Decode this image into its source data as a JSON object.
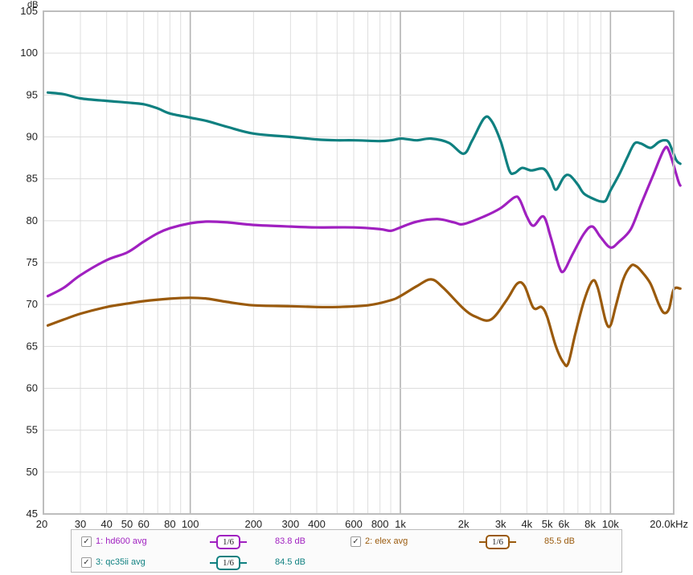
{
  "chart_data": {
    "type": "line",
    "title": "",
    "xlabel": "",
    "ylabel": "dB",
    "xscale": "log",
    "xlim": [
      20,
      20000
    ],
    "ylim": [
      45,
      105
    ],
    "grid": true,
    "y_ticks": [
      "45",
      "50",
      "55",
      "60",
      "65",
      "70",
      "75",
      "80",
      "85",
      "90",
      "95",
      "100",
      "105"
    ],
    "x_ticks": [
      {
        "v": 20,
        "label": "20"
      },
      {
        "v": 30,
        "label": "30"
      },
      {
        "v": 40,
        "label": "40"
      },
      {
        "v": 50,
        "label": "50"
      },
      {
        "v": 60,
        "label": "60"
      },
      {
        "v": 80,
        "label": "80"
      },
      {
        "v": 100,
        "label": "100"
      },
      {
        "v": 200,
        "label": "200"
      },
      {
        "v": 300,
        "label": "300"
      },
      {
        "v": 400,
        "label": "400"
      },
      {
        "v": 600,
        "label": "600"
      },
      {
        "v": 800,
        "label": "800"
      },
      {
        "v": 1000,
        "label": "1k"
      },
      {
        "v": 2000,
        "label": "2k"
      },
      {
        "v": 3000,
        "label": "3k"
      },
      {
        "v": 4000,
        "label": "4k"
      },
      {
        "v": 5000,
        "label": "5k"
      },
      {
        "v": 6000,
        "label": "6k"
      },
      {
        "v": 8000,
        "label": "8k"
      },
      {
        "v": 10000,
        "label": "10k"
      },
      {
        "v": 20000,
        "label": "20.0kHz"
      }
    ],
    "series": [
      {
        "name": "1: hd600 avg",
        "color": "#a020c0",
        "smoothing": "1/6",
        "level": "83.8 dB",
        "points": [
          [
            21,
            71
          ],
          [
            25,
            72
          ],
          [
            30,
            73.5
          ],
          [
            40,
            75.3
          ],
          [
            50,
            76.2
          ],
          [
            60,
            77.5
          ],
          [
            70,
            78.5
          ],
          [
            80,
            79.1
          ],
          [
            100,
            79.7
          ],
          [
            120,
            79.9
          ],
          [
            150,
            79.8
          ],
          [
            200,
            79.5
          ],
          [
            300,
            79.3
          ],
          [
            400,
            79.2
          ],
          [
            600,
            79.2
          ],
          [
            800,
            79
          ],
          [
            900,
            78.8
          ],
          [
            1000,
            79.2
          ],
          [
            1200,
            79.9
          ],
          [
            1500,
            80.2
          ],
          [
            1800,
            79.8
          ],
          [
            2000,
            79.6
          ],
          [
            2500,
            80.5
          ],
          [
            3000,
            81.5
          ],
          [
            3500,
            82.8
          ],
          [
            3700,
            82.5
          ],
          [
            4000,
            80.5
          ],
          [
            4300,
            79.4
          ],
          [
            4800,
            80.5
          ],
          [
            5200,
            78
          ],
          [
            5700,
            74.5
          ],
          [
            6000,
            74
          ],
          [
            6600,
            76
          ],
          [
            7500,
            78.5
          ],
          [
            8200,
            79.3
          ],
          [
            9000,
            78
          ],
          [
            10000,
            76.8
          ],
          [
            11000,
            77.5
          ],
          [
            12500,
            79
          ],
          [
            14000,
            82
          ],
          [
            16000,
            85.5
          ],
          [
            18000,
            88.5
          ],
          [
            19000,
            88.3
          ],
          [
            21000,
            84.8
          ],
          [
            21500,
            84.2
          ]
        ]
      },
      {
        "name": "2: elex avg",
        "color": "#9a5a0c",
        "smoothing": "1/6",
        "level": "85.5 dB",
        "points": [
          [
            21,
            67.5
          ],
          [
            25,
            68.2
          ],
          [
            30,
            68.9
          ],
          [
            40,
            69.7
          ],
          [
            50,
            70.1
          ],
          [
            60,
            70.4
          ],
          [
            80,
            70.7
          ],
          [
            100,
            70.8
          ],
          [
            120,
            70.7
          ],
          [
            150,
            70.3
          ],
          [
            200,
            69.9
          ],
          [
            300,
            69.8
          ],
          [
            400,
            69.7
          ],
          [
            500,
            69.7
          ],
          [
            700,
            69.9
          ],
          [
            900,
            70.5
          ],
          [
            1000,
            71
          ],
          [
            1200,
            72.2
          ],
          [
            1400,
            73
          ],
          [
            1600,
            72
          ],
          [
            2000,
            69.5
          ],
          [
            2300,
            68.5
          ],
          [
            2700,
            68.2
          ],
          [
            3200,
            70.5
          ],
          [
            3600,
            72.5
          ],
          [
            3900,
            72.2
          ],
          [
            4300,
            69.6
          ],
          [
            4700,
            69.7
          ],
          [
            5000,
            68.5
          ],
          [
            5500,
            65
          ],
          [
            6000,
            63
          ],
          [
            6300,
            63
          ],
          [
            6800,
            66.5
          ],
          [
            7500,
            70.5
          ],
          [
            8200,
            72.8
          ],
          [
            8700,
            72
          ],
          [
            9500,
            68
          ],
          [
            10000,
            67.5
          ],
          [
            10600,
            69.8
          ],
          [
            11500,
            73
          ],
          [
            12500,
            74.6
          ],
          [
            13200,
            74.6
          ],
          [
            14000,
            74
          ],
          [
            15500,
            72.5
          ],
          [
            17000,
            70
          ],
          [
            18000,
            69
          ],
          [
            19000,
            69.5
          ],
          [
            20000,
            71.8
          ],
          [
            21500,
            71.9
          ]
        ]
      },
      {
        "name": "3: qc35ii avg",
        "color": "#0f8080",
        "smoothing": "1/6",
        "level": "84.5 dB",
        "points": [
          [
            21,
            95.3
          ],
          [
            25,
            95.1
          ],
          [
            30,
            94.6
          ],
          [
            40,
            94.3
          ],
          [
            50,
            94.1
          ],
          [
            60,
            93.9
          ],
          [
            70,
            93.4
          ],
          [
            80,
            92.8
          ],
          [
            100,
            92.3
          ],
          [
            120,
            91.9
          ],
          [
            150,
            91.2
          ],
          [
            200,
            90.4
          ],
          [
            300,
            90
          ],
          [
            400,
            89.7
          ],
          [
            500,
            89.6
          ],
          [
            600,
            89.6
          ],
          [
            800,
            89.5
          ],
          [
            900,
            89.6
          ],
          [
            1000,
            89.8
          ],
          [
            1100,
            89.7
          ],
          [
            1200,
            89.6
          ],
          [
            1400,
            89.8
          ],
          [
            1700,
            89.3
          ],
          [
            2000,
            88
          ],
          [
            2200,
            89.6
          ],
          [
            2500,
            92.2
          ],
          [
            2700,
            92
          ],
          [
            3000,
            89.5
          ],
          [
            3300,
            86
          ],
          [
            3500,
            85.7
          ],
          [
            3800,
            86.3
          ],
          [
            4200,
            86
          ],
          [
            4800,
            86.2
          ],
          [
            5200,
            85
          ],
          [
            5500,
            83.7
          ],
          [
            6000,
            85.2
          ],
          [
            6400,
            85.4
          ],
          [
            7000,
            84.3
          ],
          [
            7500,
            83.2
          ],
          [
            8500,
            82.5
          ],
          [
            9000,
            82.3
          ],
          [
            9500,
            82.4
          ],
          [
            10000,
            83.6
          ],
          [
            11000,
            85.5
          ],
          [
            12000,
            87.5
          ],
          [
            13000,
            89.2
          ],
          [
            14000,
            89.2
          ],
          [
            15500,
            88.7
          ],
          [
            17000,
            89.4
          ],
          [
            18000,
            89.6
          ],
          [
            19000,
            89.3
          ],
          [
            20500,
            87.3
          ],
          [
            21500,
            86.8
          ]
        ]
      }
    ]
  },
  "legend": {
    "items": [
      {
        "label": "1: hd600 avg",
        "checked": "✓",
        "smoothing": "1/6",
        "level": "83.8 dB"
      },
      {
        "label": "2: elex avg",
        "checked": "✓",
        "smoothing": "1/6",
        "level": "85.5 dB"
      },
      {
        "label": "3: qc35ii avg",
        "checked": "✓",
        "smoothing": "1/6",
        "level": "84.5 dB"
      }
    ]
  }
}
